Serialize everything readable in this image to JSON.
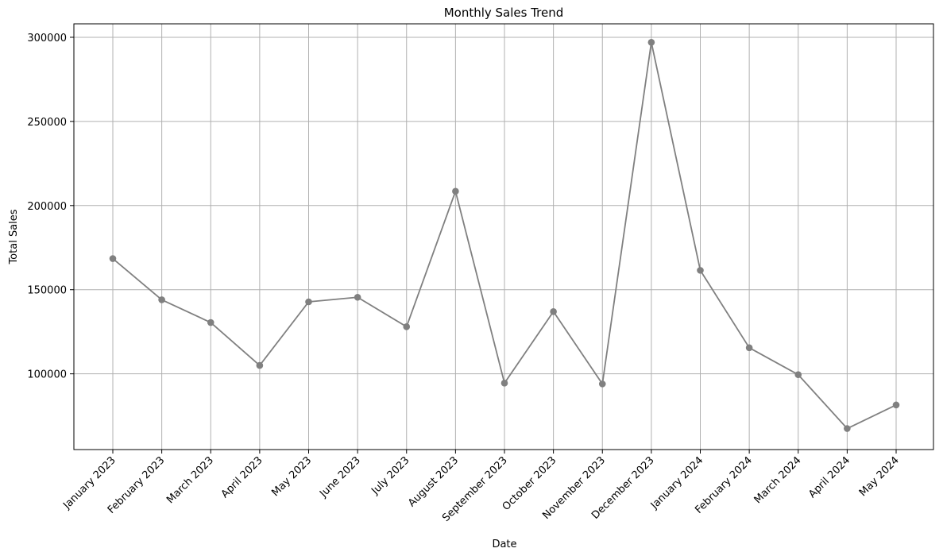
{
  "chart_data": {
    "type": "line",
    "title": "Monthly Sales Trend",
    "xlabel": "Date",
    "ylabel": "Total Sales",
    "categories": [
      "January 2023",
      "February 2023",
      "March 2023",
      "April 2023",
      "May 2023",
      "June 2023",
      "July 2023",
      "August 2023",
      "September 2023",
      "October 2023",
      "November 2023",
      "December 2023",
      "January 2024",
      "February 2024",
      "March 2024",
      "April 2024",
      "May 2024"
    ],
    "series": [
      {
        "values": [
          168500,
          144000,
          130500,
          105000,
          142800,
          145500,
          128000,
          208500,
          94500,
          137000,
          94000,
          297000,
          161500,
          115500,
          99500,
          67500,
          81500
        ]
      }
    ],
    "ylim": [
      55000,
      308000
    ],
    "yticks": [
      100000,
      150000,
      200000,
      250000,
      300000
    ],
    "grid": true,
    "line_color": "#808080",
    "marker": "circle",
    "x_tick_rotation": -45
  }
}
